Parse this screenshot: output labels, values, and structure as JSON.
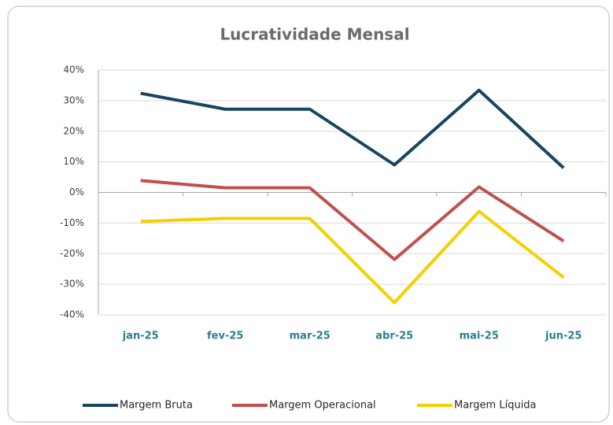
{
  "chart_data": {
    "type": "line",
    "title": "Lucratividade Mensal",
    "categories": [
      "jan-25",
      "fev-25",
      "mar-25",
      "abr-25",
      "mai-25",
      "jun-25"
    ],
    "series": [
      {
        "name": "Margem Bruta",
        "color": "#17465f",
        "values": [
          32.4,
          27.2,
          27.2,
          9,
          33.4,
          8
        ]
      },
      {
        "name": "Margem Operacional",
        "color": "#c0504d",
        "values": [
          3.9,
          1.5,
          1.5,
          -21.9,
          1.8,
          -15.9
        ]
      },
      {
        "name": "Margem Líquida",
        "color": "#f5d000",
        "values": [
          -9.5,
          -8.5,
          -8.5,
          -36,
          -6.2,
          -27.8
        ]
      }
    ],
    "ylim": [
      -40,
      40
    ],
    "yticks": [
      {
        "value": -40,
        "label": "-40%"
      },
      {
        "value": -30,
        "label": "-30%"
      },
      {
        "value": -20,
        "label": "-20%"
      },
      {
        "value": -10,
        "label": "-10%"
      },
      {
        "value": 0,
        "label": "0%"
      },
      {
        "value": 10,
        "label": "10%"
      },
      {
        "value": 20,
        "label": "20%"
      },
      {
        "value": 30,
        "label": "30%"
      },
      {
        "value": 40,
        "label": "40%"
      }
    ],
    "grid": true,
    "legend": "bottom"
  }
}
